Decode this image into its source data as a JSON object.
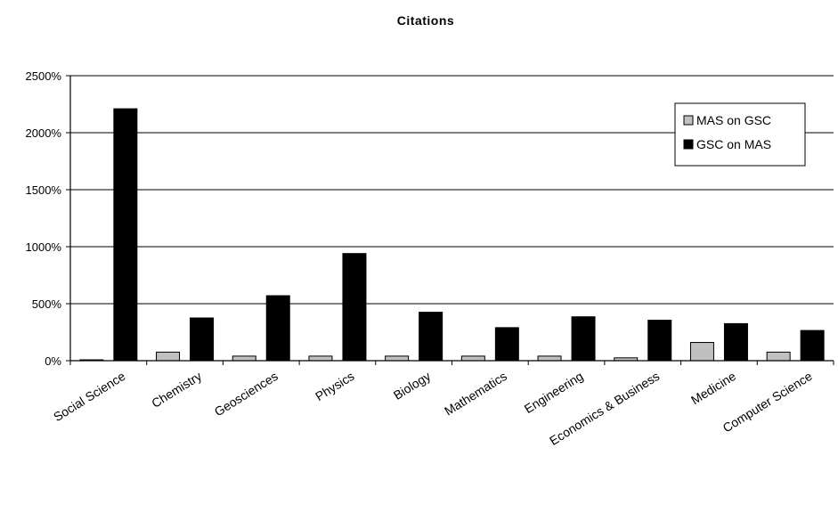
{
  "chart_data": {
    "type": "bar",
    "title": "Citations",
    "xlabel": "",
    "ylabel": "",
    "ylim": [
      0,
      2500
    ],
    "y_ticks": [
      "0%",
      "500%",
      "1000%",
      "1500%",
      "2000%",
      "2500%"
    ],
    "y_tick_values": [
      0,
      500,
      1000,
      1500,
      2000,
      2500
    ],
    "grid": true,
    "legend_position": "top-right",
    "categories": [
      "Social Science",
      "Chemistry",
      "Geosciences",
      "Physics",
      "Biology",
      "Mathematics",
      "Engineering",
      "Economics & Business",
      "Medicine",
      "Computer Science"
    ],
    "series": [
      {
        "name": "MAS on GSC",
        "color": "#c0c0c0",
        "values": [
          5,
          75,
          40,
          40,
          40,
          40,
          40,
          25,
          160,
          75
        ]
      },
      {
        "name": "GSC on MAS",
        "color": "#000000",
        "values": [
          2210,
          375,
          570,
          940,
          425,
          290,
          385,
          355,
          325,
          265
        ]
      }
    ]
  }
}
